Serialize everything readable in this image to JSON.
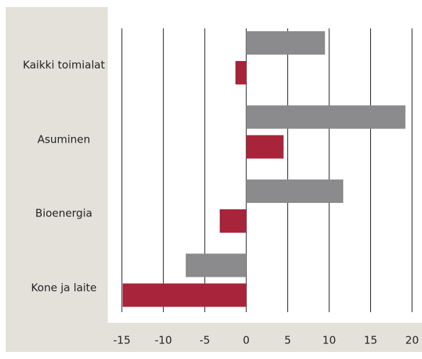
{
  "chart_data": {
    "type": "hbar",
    "categories": [
      "Kaikki toimialat",
      "Asuminen",
      "Bioenergia",
      "Kone ja laite"
    ],
    "series": [
      {
        "color": "#8b8b8d",
        "values": [
          9.5,
          19.2,
          11.7,
          -7.3
        ]
      },
      {
        "color": "#a8243b",
        "values": [
          -1.3,
          4.5,
          -3.2,
          -14.9
        ]
      }
    ],
    "xlim": [
      -16.7,
      21.2
    ],
    "xticks": [
      -15,
      -10,
      -5,
      0,
      5,
      10,
      15,
      20
    ],
    "grid": true
  }
}
